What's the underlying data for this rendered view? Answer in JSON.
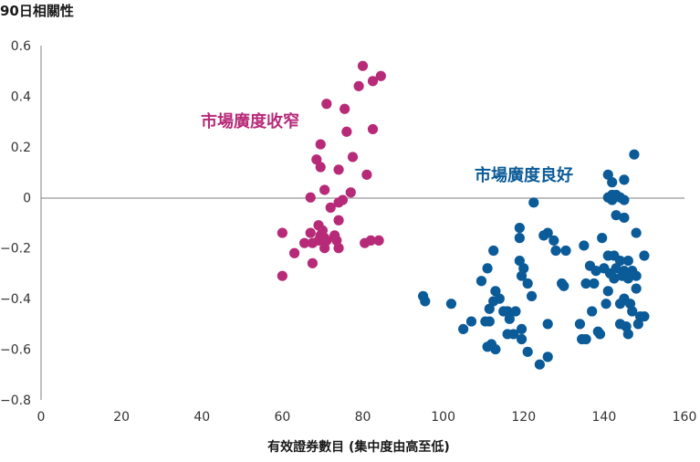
{
  "chart_data": {
    "type": "scatter",
    "title": "90日相關性",
    "xlabel": "有效證券數目 (集中度由高至低)",
    "ylabel": "",
    "xlim": [
      0,
      160
    ],
    "ylim": [
      -0.8,
      0.6
    ],
    "x_ticks": [
      0,
      20,
      40,
      60,
      80,
      100,
      120,
      140,
      160
    ],
    "y_ticks": [
      0.6,
      0.4,
      0.2,
      0,
      -0.2,
      -0.4,
      -0.6,
      -0.8
    ],
    "y_tick_labels": [
      "0.6",
      "0.4",
      "0.2",
      "0",
      "−0.2",
      "−0.4",
      "−0.6",
      "−0.8"
    ],
    "grid": false,
    "zero_line": true,
    "series": [
      {
        "name": "市場廣度收窄",
        "color": "#B72A78",
        "points": [
          [
            80,
            0.52
          ],
          [
            84.5,
            0.48
          ],
          [
            82.5,
            0.46
          ],
          [
            79,
            0.44
          ],
          [
            71,
            0.37
          ],
          [
            75.5,
            0.35
          ],
          [
            82.5,
            0.27
          ],
          [
            76,
            0.26
          ],
          [
            69.5,
            0.21
          ],
          [
            77.5,
            0.16
          ],
          [
            68.5,
            0.15
          ],
          [
            69.5,
            0.12
          ],
          [
            74,
            0.11
          ],
          [
            81,
            0.09
          ],
          [
            70.5,
            0.03
          ],
          [
            77,
            0.02
          ],
          [
            75,
            -0.01
          ],
          [
            67,
            0.0
          ],
          [
            74,
            -0.02
          ],
          [
            72,
            -0.04
          ],
          [
            74,
            -0.09
          ],
          [
            69,
            -0.11
          ],
          [
            70,
            -0.13
          ],
          [
            67,
            -0.14
          ],
          [
            73,
            -0.15
          ],
          [
            69.5,
            -0.15
          ],
          [
            60,
            -0.14
          ],
          [
            70.5,
            -0.16
          ],
          [
            69,
            -0.17
          ],
          [
            71,
            -0.17
          ],
          [
            73.5,
            -0.17
          ],
          [
            65.5,
            -0.18
          ],
          [
            67.5,
            -0.18
          ],
          [
            82,
            -0.17
          ],
          [
            84,
            -0.17
          ],
          [
            80.5,
            -0.18
          ],
          [
            70.5,
            -0.2
          ],
          [
            74,
            -0.2
          ],
          [
            63,
            -0.22
          ],
          [
            67.5,
            -0.26
          ],
          [
            60,
            -0.31
          ]
        ]
      },
      {
        "name": "市場廣度良好",
        "color": "#0B5B98",
        "points": [
          [
            147.5,
            0.17
          ],
          [
            141,
            0.09
          ],
          [
            142,
            0.06
          ],
          [
            145,
            0.07
          ],
          [
            142,
            0.01
          ],
          [
            143,
            0.01
          ],
          [
            144,
            0.0
          ],
          [
            145,
            -0.01
          ],
          [
            141,
            0.0
          ],
          [
            142,
            -0.01
          ],
          [
            143,
            -0.07
          ],
          [
            145,
            -0.08
          ],
          [
            122.5,
            -0.02
          ],
          [
            119,
            -0.12
          ],
          [
            148,
            -0.14
          ],
          [
            126,
            -0.14
          ],
          [
            125,
            -0.15
          ],
          [
            119,
            -0.16
          ],
          [
            127.5,
            -0.17
          ],
          [
            139.5,
            -0.16
          ],
          [
            135,
            -0.19
          ],
          [
            128,
            -0.21
          ],
          [
            130.5,
            -0.21
          ],
          [
            112.5,
            -0.21
          ],
          [
            141,
            -0.23
          ],
          [
            142.5,
            -0.23
          ],
          [
            144,
            -0.25
          ],
          [
            146,
            -0.25
          ],
          [
            150,
            -0.23
          ],
          [
            119,
            -0.25
          ],
          [
            111,
            -0.28
          ],
          [
            120,
            -0.28
          ],
          [
            136.5,
            -0.27
          ],
          [
            138,
            -0.29
          ],
          [
            140,
            -0.28
          ],
          [
            143,
            -0.28
          ],
          [
            145,
            -0.29
          ],
          [
            147,
            -0.29
          ],
          [
            148,
            -0.31
          ],
          [
            141.5,
            -0.3
          ],
          [
            142.5,
            -0.32
          ],
          [
            144.5,
            -0.31
          ],
          [
            146,
            -0.32
          ],
          [
            119.5,
            -0.31
          ],
          [
            121,
            -0.34
          ],
          [
            129.5,
            -0.34
          ],
          [
            130,
            -0.35
          ],
          [
            135.5,
            -0.34
          ],
          [
            137.5,
            -0.34
          ],
          [
            109.5,
            -0.33
          ],
          [
            113,
            -0.37
          ],
          [
            148,
            -0.36
          ],
          [
            122,
            -0.39
          ],
          [
            141,
            -0.37
          ],
          [
            95,
            -0.39
          ],
          [
            95.5,
            -0.41
          ],
          [
            102,
            -0.42
          ],
          [
            112.5,
            -0.41
          ],
          [
            114,
            -0.4
          ],
          [
            140.5,
            -0.42
          ],
          [
            144,
            -0.42
          ],
          [
            145,
            -0.4
          ],
          [
            146.5,
            -0.42
          ],
          [
            111.5,
            -0.44
          ],
          [
            115,
            -0.45
          ],
          [
            116,
            -0.45
          ],
          [
            118,
            -0.45
          ],
          [
            137,
            -0.45
          ],
          [
            116.5,
            -0.48
          ],
          [
            147,
            -0.45
          ],
          [
            149,
            -0.47
          ],
          [
            150,
            -0.47
          ],
          [
            107,
            -0.49
          ],
          [
            110.5,
            -0.49
          ],
          [
            111.5,
            -0.49
          ],
          [
            126,
            -0.5
          ],
          [
            134,
            -0.5
          ],
          [
            144,
            -0.5
          ],
          [
            145.5,
            -0.51
          ],
          [
            146,
            -0.54
          ],
          [
            148.5,
            -0.5
          ],
          [
            105,
            -0.52
          ],
          [
            119.5,
            -0.52
          ],
          [
            138.5,
            -0.53
          ],
          [
            139,
            -0.54
          ],
          [
            116,
            -0.54
          ],
          [
            117.5,
            -0.54
          ],
          [
            134.5,
            -0.56
          ],
          [
            135.5,
            -0.56
          ],
          [
            119.5,
            -0.56
          ],
          [
            111,
            -0.59
          ],
          [
            112,
            -0.58
          ],
          [
            113,
            -0.6
          ],
          [
            121,
            -0.61
          ],
          [
            126,
            -0.63
          ],
          [
            124,
            -0.66
          ]
        ]
      }
    ]
  }
}
